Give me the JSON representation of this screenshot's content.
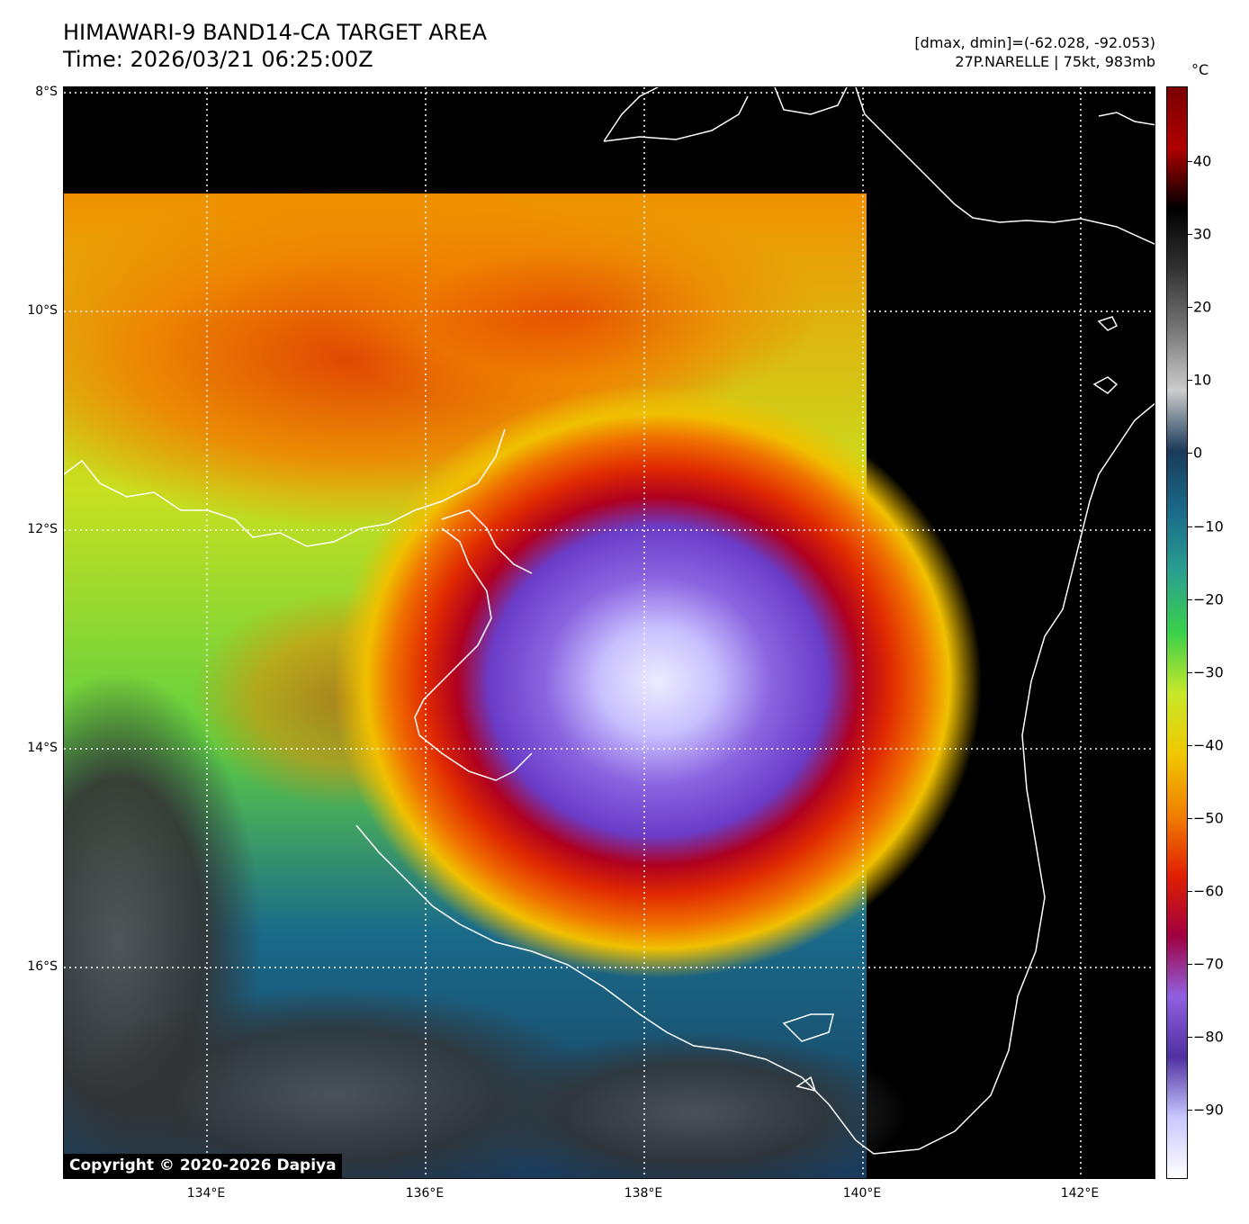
{
  "header": {
    "title_line1": "HIMAWARI-9 BAND14-CA TARGET AREA",
    "title_line2": "Time: 2026/03/21 06:25:00Z",
    "dminmax": "[dmax, dmin]=(-62.028, -92.053)",
    "storm": "27P.NARELLE | 75kt, 983mb"
  },
  "colorbar": {
    "unit": "°C",
    "ticks": [
      "40",
      "30",
      "20",
      "10",
      "0",
      "−10",
      "−20",
      "−30",
      "−40",
      "−50",
      "−60",
      "−70",
      "−80",
      "−90"
    ],
    "stops": [
      "#7a0000",
      "#b00000",
      "#000000",
      "#333333",
      "#777777",
      "#cccccc",
      "#1a3a5a",
      "#1a6a8a",
      "#2aa090",
      "#3ad04a",
      "#c8e82a",
      "#f0c800",
      "#f08000",
      "#e02000",
      "#a00040",
      "#9060e0",
      "#5030a0",
      "#c8c8ff",
      "#ffffff"
    ]
  },
  "axes": {
    "lat_labels": [
      "8°S",
      "10°S",
      "12°S",
      "14°S",
      "16°S"
    ],
    "lon_labels": [
      "134°E",
      "136°E",
      "138°E",
      "140°E",
      "142°E"
    ]
  },
  "copyright": "Copyright © 2020-2026 Dapiya"
}
